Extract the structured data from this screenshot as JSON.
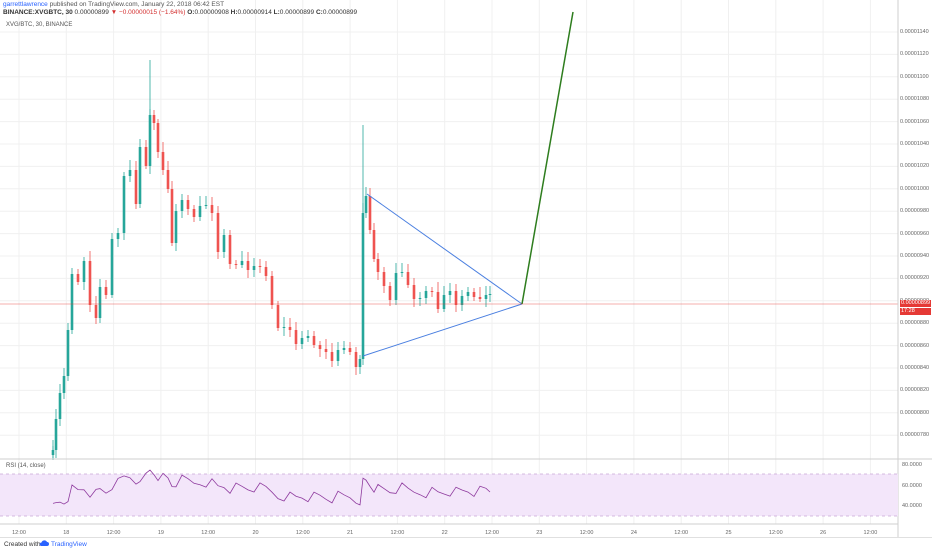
{
  "header": {
    "username": "garrettlawrence",
    "published": "published on TradingView.com, January 22, 2018 06:42 EST",
    "symbol": "BINANCE:XVGBTC, 30",
    "last": "0.00000899",
    "change": "−0.00000015 (−1.64%)",
    "open_label": "O:",
    "open": "0.00000908",
    "high_label": "H:",
    "high": "0.00000914",
    "low_label": "L:",
    "low": "0.00000899",
    "close_label": "C:",
    "close": "0.00000899"
  },
  "symbol_line": "XVG/BTC, 30, BINANCE",
  "rsi_line": "RSI (14, close)",
  "price_axis": [
    "0.00001140",
    "0.00001120",
    "0.00001100",
    "0.00001080",
    "0.00001060",
    "0.00001040",
    "0.00001020",
    "0.00001000",
    "0.00000980",
    "0.00000960",
    "0.00000940",
    "0.00000920",
    "0.00000900",
    "0.00000880",
    "0.00000860",
    "0.00000840",
    "0.00000820",
    "0.00000800",
    "0.00000780"
  ],
  "current_price": "0.00000899",
  "current_time": "17:28",
  "rsi_axis": [
    "80.0000",
    "60.0000",
    "40.0000"
  ],
  "time_axis": [
    "12:00",
    "18",
    "12:00",
    "19",
    "12:00",
    "20",
    "12:00",
    "21",
    "12:00",
    "22",
    "12:00",
    "23",
    "12:00",
    "24",
    "12:00",
    "25",
    "12:00",
    "26",
    "12:00"
  ],
  "footer": {
    "created": "Created with",
    "brand": "TradingView"
  },
  "colors": {
    "up": "#26a69a",
    "down": "#ef5350",
    "triangle": "#4a7fe0",
    "projection": "#2e7d1e",
    "rsi_line": "#8e3a9e",
    "rsi_band": "#f3e6fa"
  }
}
